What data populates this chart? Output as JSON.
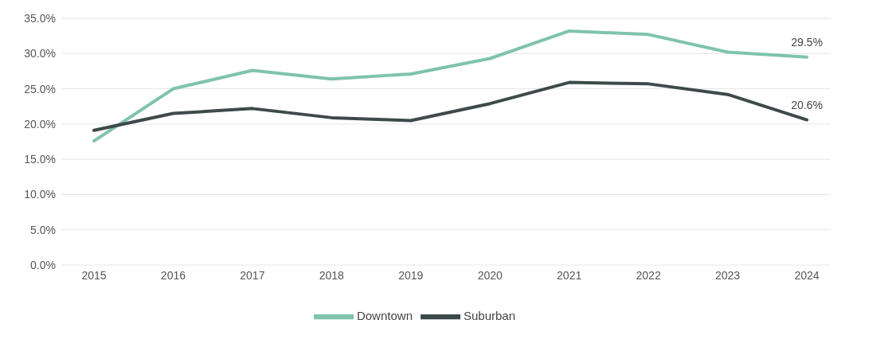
{
  "chart_data": {
    "type": "line",
    "categories": [
      "2015",
      "2016",
      "2017",
      "2018",
      "2019",
      "2020",
      "2021",
      "2022",
      "2023",
      "2024"
    ],
    "series": [
      {
        "name": "Downtown",
        "color": "#7fc3ad",
        "values": [
          17.6,
          25.0,
          27.6,
          26.4,
          27.1,
          29.3,
          33.2,
          32.7,
          30.2,
          29.5
        ],
        "value_labels": [
          null,
          null,
          null,
          null,
          null,
          null,
          null,
          null,
          null,
          "29.5%"
        ]
      },
      {
        "name": "Suburban",
        "color": "#3e4a4a",
        "values": [
          19.1,
          21.5,
          22.2,
          20.9,
          20.5,
          22.9,
          25.9,
          25.7,
          24.2,
          20.6
        ],
        "value_labels": [
          null,
          null,
          null,
          null,
          null,
          null,
          null,
          null,
          null,
          "20.6%"
        ]
      }
    ],
    "ylim": [
      0,
      35
    ],
    "yticks": [
      {
        "value": 0,
        "label": "0.0%"
      },
      {
        "value": 5,
        "label": "5.0%"
      },
      {
        "value": 10,
        "label": "10.0%"
      },
      {
        "value": 15,
        "label": "15.0%"
      },
      {
        "value": 20,
        "label": "20.0%"
      },
      {
        "value": 25,
        "label": "25.0%"
      },
      {
        "value": 30,
        "label": "30.0%"
      },
      {
        "value": 35,
        "label": "35.0%"
      }
    ],
    "grid": "y",
    "legend": "bottom",
    "marker": "none",
    "line_style": "solid"
  }
}
